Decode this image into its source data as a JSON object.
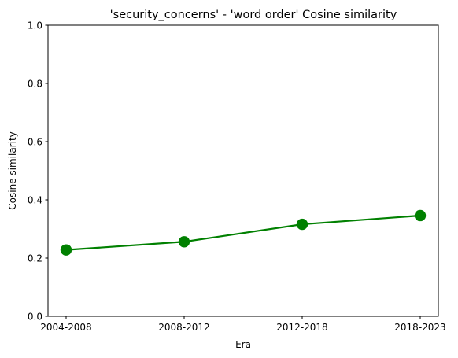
{
  "chart_data": {
    "type": "line",
    "title": "'security_concerns' - 'word order' Cosine similarity",
    "xlabel": "Era",
    "ylabel": "Cosine similarity",
    "categories": [
      "2004-2008",
      "2008-2012",
      "2012-2018",
      "2018-2023"
    ],
    "series": [
      {
        "values": [
          0.228,
          0.256,
          0.316,
          0.346
        ],
        "color": "#008000"
      }
    ],
    "ylim": [
      0.0,
      1.0
    ],
    "yticks": [
      0.0,
      0.2,
      0.4,
      0.6,
      0.8,
      1.0
    ],
    "ytick_labels": [
      "0.0",
      "0.2",
      "0.4",
      "0.6",
      "0.8",
      "1.0"
    ],
    "grid": false,
    "marker": "circle"
  }
}
